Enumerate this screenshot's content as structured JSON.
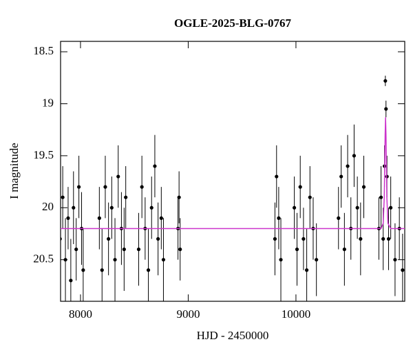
{
  "chart_data": {
    "type": "scatter",
    "title": "OGLE-2025-BLG-0767",
    "x_label": "HJD - 2450000",
    "y_label": "I magnitude",
    "xlim": [
      7815,
      11010
    ],
    "ylim": [
      20.9,
      18.4
    ],
    "xticks": [
      8000,
      9000,
      10000
    ],
    "yticks": [
      18.5,
      19,
      19.5,
      20,
      20.5
    ],
    "series": [
      {
        "color": "#000000",
        "x": [
          7810,
          7835,
          7860,
          7885,
          7910,
          7935,
          7960,
          7985,
          8010,
          8025,
          8175,
          8200,
          8230,
          8260,
          8290,
          8320,
          8350,
          8380,
          8405,
          8420,
          8540,
          8570,
          8600,
          8630,
          8660,
          8690,
          8720,
          8750,
          8770,
          8905,
          8915,
          8925,
          9805,
          9820,
          9840,
          9860,
          9985,
          10010,
          10040,
          10070,
          10100,
          10130,
          10160,
          10190,
          10395,
          10420,
          10450,
          10480,
          10510,
          10540,
          10570,
          10600,
          10630,
          10770,
          10790,
          10810,
          10822,
          10830,
          10836,
          10845,
          10860,
          10880,
          10920,
          10960,
          10990
        ],
        "values": [
          20.3,
          19.9,
          20.5,
          20.1,
          20.7,
          20.0,
          20.4,
          19.8,
          20.2,
          20.6,
          20.1,
          20.6,
          19.8,
          20.3,
          20.0,
          20.5,
          19.7,
          20.2,
          20.4,
          19.9,
          20.4,
          19.8,
          20.2,
          20.6,
          20.0,
          19.6,
          20.3,
          20.1,
          20.5,
          20.2,
          19.9,
          20.4,
          20.3,
          19.7,
          20.1,
          20.5,
          20.0,
          20.4,
          19.8,
          20.3,
          20.6,
          19.9,
          20.2,
          20.5,
          20.1,
          19.7,
          20.4,
          19.6,
          20.2,
          19.5,
          20.0,
          20.3,
          19.8,
          20.2,
          19.9,
          20.3,
          19.6,
          18.78,
          19.05,
          19.7,
          20.3,
          20.0,
          20.5,
          20.2,
          20.6
        ],
        "errors": [
          0.35,
          0.3,
          0.4,
          0.3,
          0.4,
          0.35,
          0.3,
          0.3,
          0.35,
          0.4,
          0.3,
          0.4,
          0.3,
          0.35,
          0.3,
          0.4,
          0.3,
          0.35,
          0.4,
          0.3,
          0.35,
          0.3,
          0.3,
          0.4,
          0.3,
          0.3,
          0.35,
          0.3,
          0.4,
          0.3,
          0.25,
          0.3,
          0.35,
          0.3,
          0.3,
          0.4,
          0.3,
          0.35,
          0.3,
          0.3,
          0.4,
          0.3,
          0.3,
          0.35,
          0.3,
          0.3,
          0.35,
          0.3,
          0.3,
          0.3,
          0.3,
          0.35,
          0.3,
          0.3,
          0.3,
          0.3,
          0.2,
          0.05,
          0.08,
          0.2,
          0.3,
          0.3,
          0.35,
          0.3,
          0.35
        ]
      },
      {
        "color": "#cc33cc",
        "x": [
          7815,
          10790,
          10810,
          10820,
          10828,
          10832,
          10836,
          10844,
          10854,
          10880,
          11010
        ],
        "values": [
          20.2,
          20.2,
          20.15,
          19.9,
          19.3,
          19.13,
          19.3,
          19.9,
          20.15,
          20.2,
          20.2
        ]
      }
    ]
  }
}
